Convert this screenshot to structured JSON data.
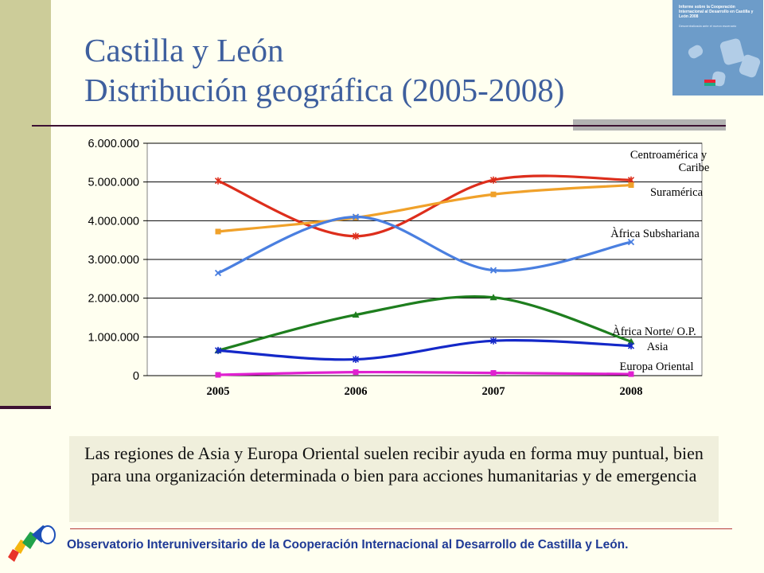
{
  "slide": {
    "title_line1": "Castilla y León",
    "title_line2": "Distribución geográfica (2005-2008)",
    "note": "Las regiones de Asia y Europa Oriental suelen recibir ayuda en forma muy puntual, bien para una organización determinada o bien para acciones humanitarias y de emergencia",
    "footer": "Observatorio Interuniversitario de la Cooperación Internacional al Desarrollo de Castilla y León.",
    "cover_image": {
      "title": "Informe sobre la Cooperación Internacional al Desarrollo en Castilla y León 2008",
      "subtitle": "Descentralizada ante el nuevo escenario",
      "background": "#6d9cc9"
    },
    "logo_icon": "colored-cylinders-logo"
  },
  "colors": {
    "title": "#3e5f9e",
    "left_bar": "#cccc99",
    "dark_rule": "#3d1133",
    "footer_text": "#1f3a96"
  },
  "chart_data": {
    "type": "line",
    "smoothed": true,
    "categories": [
      "2005",
      "2006",
      "2007",
      "2008"
    ],
    "ylim": [
      0,
      6000000
    ],
    "yticks": [
      0,
      1000000,
      2000000,
      3000000,
      4000000,
      5000000,
      6000000
    ],
    "ytick_labels": [
      "0",
      "1.000.000",
      "2.000.000",
      "3.000.000",
      "4.000.000",
      "5.000.000",
      "6.000.000"
    ],
    "grid": "horizontal",
    "series": [
      {
        "name": "Centroamérica y Caribe",
        "label_lines": [
          "Centroamérica y",
          "Caribe"
        ],
        "values": [
          5030000,
          3600000,
          5050000,
          5050000
        ],
        "color": "#dd2e1c",
        "marker": "star"
      },
      {
        "name": "Suramérica",
        "label_lines": [
          "Suramérica"
        ],
        "values": [
          3720000,
          4080000,
          4680000,
          4920000
        ],
        "color": "#f0a12a",
        "marker": "square"
      },
      {
        "name": "Àfrica Subshariana",
        "label_lines": [
          "Àfrica Subshariana"
        ],
        "values": [
          2650000,
          4100000,
          2720000,
          3450000
        ],
        "color": "#4a7fe0",
        "marker": "x"
      },
      {
        "name": "Àfrica Norte/ O.P.",
        "label_lines": [
          "Àfrica Norte/ O.P."
        ],
        "values": [
          650000,
          1570000,
          2020000,
          880000
        ],
        "color": "#1e7e1e",
        "marker": "triangle"
      },
      {
        "name": "Asia",
        "label_lines": [
          "Asia"
        ],
        "values": [
          650000,
          420000,
          900000,
          770000
        ],
        "color": "#1428c8",
        "marker": "star"
      },
      {
        "name": "Europa Oriental",
        "label_lines": [
          "Europa Oriental"
        ],
        "values": [
          20000,
          90000,
          70000,
          40000
        ],
        "color": "#e020d0",
        "marker": "square"
      }
    ]
  }
}
